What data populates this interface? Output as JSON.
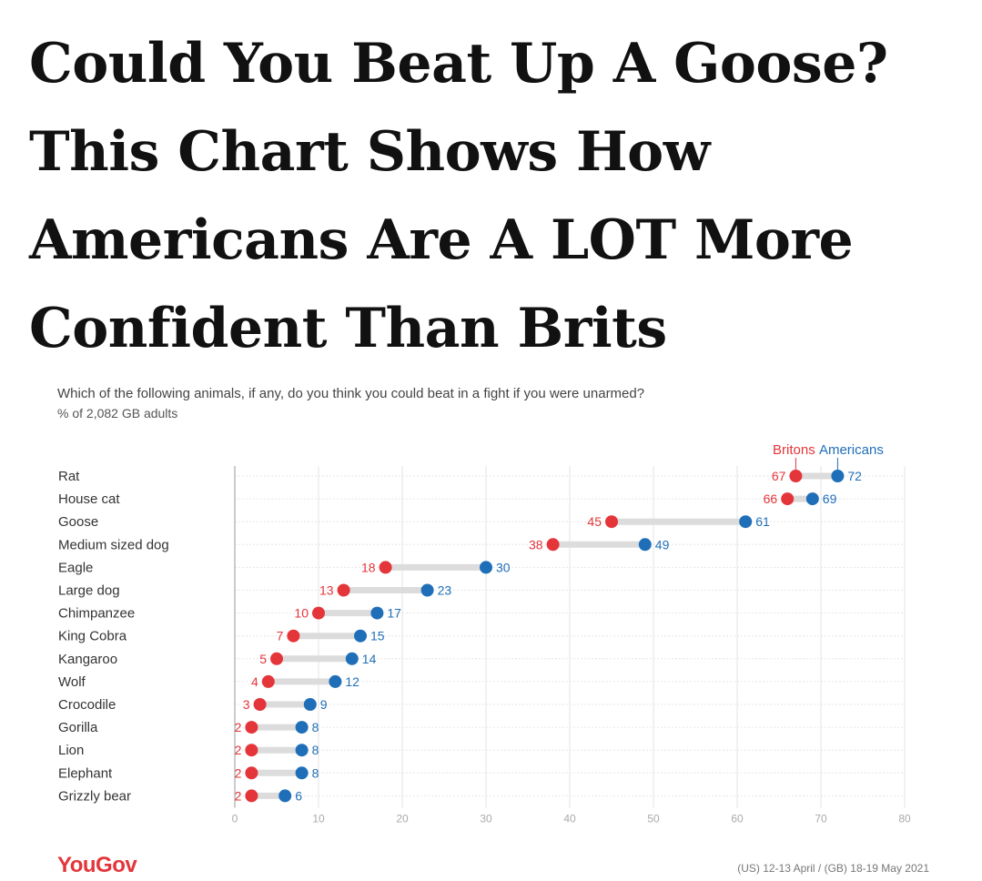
{
  "headline": "Could You Beat Up A Goose? This Chart Shows How Americans Are A LOT More Confident Than Brits",
  "chart_data": {
    "type": "dumbbell",
    "subtitle": "Which of the following animals, if any, do you think you could beat in a fight if you were unarmed?",
    "subtitle2": "% of 2,082 GB adults",
    "categories": [
      "Rat",
      "House cat",
      "Goose",
      "Medium sized dog",
      "Eagle",
      "Large dog",
      "Chimpanzee",
      "King Cobra",
      "Kangaroo",
      "Wolf",
      "Crocodile",
      "Gorilla",
      "Lion",
      "Elephant",
      "Grizzly bear"
    ],
    "series": [
      {
        "name": "Britons",
        "color": "#e4353a",
        "values": [
          67,
          66,
          45,
          38,
          18,
          13,
          10,
          7,
          5,
          4,
          3,
          2,
          2,
          2,
          2
        ]
      },
      {
        "name": "Americans",
        "color": "#1f6fb8",
        "values": [
          72,
          69,
          61,
          49,
          30,
          23,
          17,
          15,
          14,
          12,
          9,
          8,
          8,
          8,
          6
        ]
      }
    ],
    "xlim": [
      0,
      80
    ],
    "xticks": [
      0,
      10,
      20,
      30,
      40,
      50,
      60,
      70,
      80
    ],
    "grid": true,
    "legend_position": "top-right"
  },
  "footer": {
    "logo": "YouGov",
    "dates": "(US) 12-13 April / (GB) 18-19 May 2021"
  }
}
